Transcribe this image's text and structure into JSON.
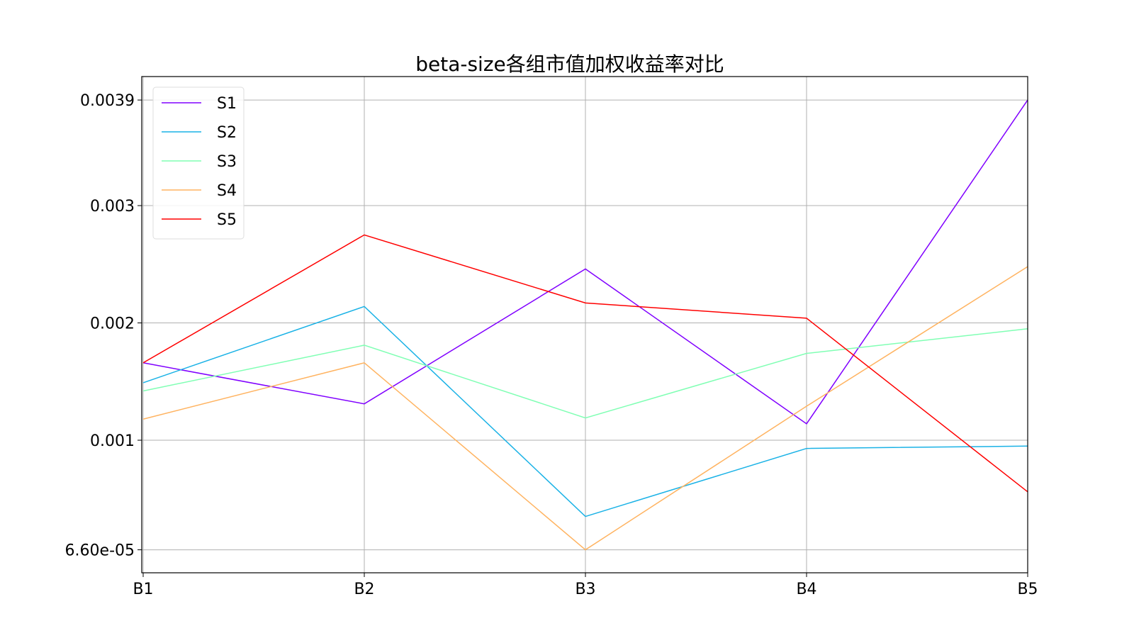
{
  "chart_data": {
    "type": "line",
    "title": "beta-size各组市值加权收益率对比",
    "categories": [
      "B1",
      "B2",
      "B3",
      "B4",
      "B5"
    ],
    "y_ticks": [
      6.6e-05,
      0.001,
      0.002,
      0.003,
      0.0039
    ],
    "y_tick_labels": [
      "6.60e-05",
      "0.001",
      "0.002",
      "0.003",
      "0.0039"
    ],
    "ylim": [
      -0.00013,
      0.0041
    ],
    "grid": true,
    "legend_position": "upper-left",
    "series": [
      {
        "name": "S1",
        "color": "#8000ff",
        "values": [
          0.00166,
          0.00131,
          0.00246,
          0.00114,
          0.0039
        ]
      },
      {
        "name": "S2",
        "color": "#1ab2e6",
        "values": [
          0.00149,
          0.00214,
          0.00035,
          0.00093,
          0.00095
        ]
      },
      {
        "name": "S3",
        "color": "#80ffb4",
        "values": [
          0.00142,
          0.00181,
          0.00119,
          0.00174,
          0.00195
        ]
      },
      {
        "name": "S4",
        "color": "#ffb360",
        "values": [
          0.00118,
          0.00166,
          6.6e-05,
          0.00129,
          0.00248
        ]
      },
      {
        "name": "S5",
        "color": "#ff0000",
        "values": [
          0.00166,
          0.00275,
          0.00217,
          0.00204,
          0.00056
        ]
      }
    ]
  }
}
